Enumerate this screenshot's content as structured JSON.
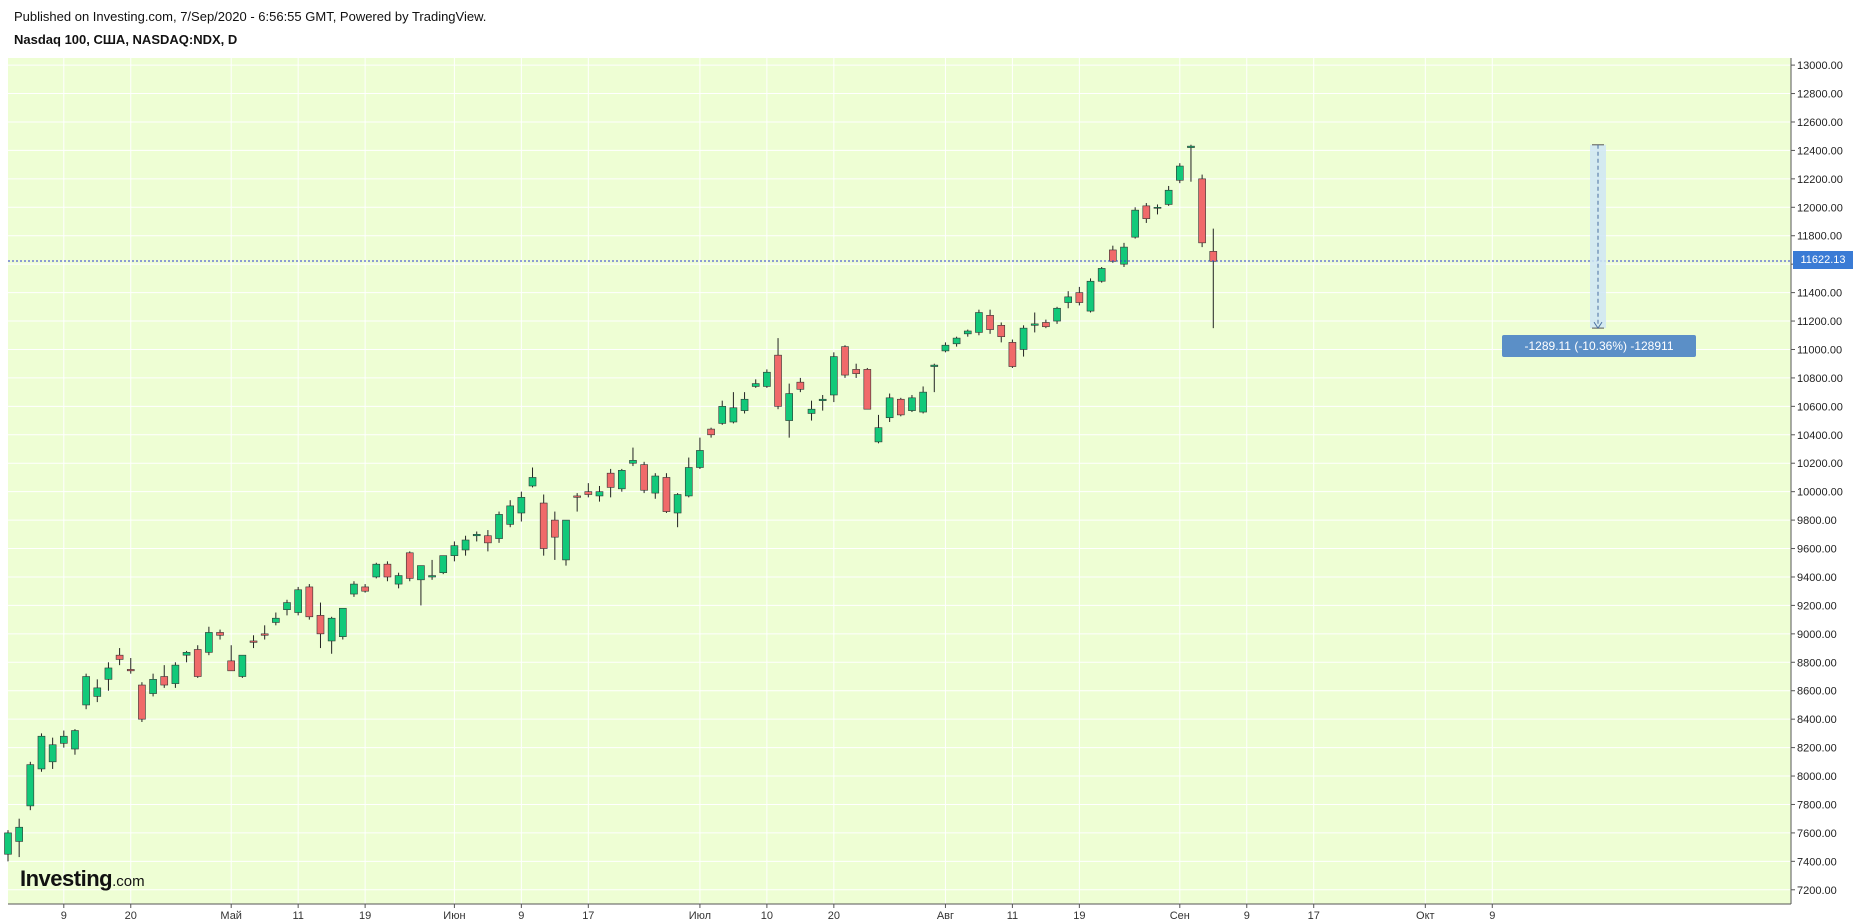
{
  "header": {
    "published": "Published on Investing.com, 7/Sep/2020 - 6:56:55 GMT, Powered by TradingView.",
    "symbol": "Nasdaq 100, США, NASDAQ:NDX, D"
  },
  "logo": {
    "main": "Investing",
    "suffix": ".com"
  },
  "last_price_label": "11622.13",
  "measure_label": "-1289.11 (-10.36%) -128911",
  "colors": {
    "plot_bg": "#eefed4",
    "up": "#12c97a",
    "down": "#f06a6a",
    "wick": "#222222",
    "last_price_line": "#2b3bd1",
    "measure": "#5b8fc7"
  },
  "chart_data": {
    "type": "candlestick",
    "title": "Nasdaq 100, США, NASDAQ:NDX, D",
    "ylim": [
      7100,
      13050
    ],
    "y_axis_side": "right",
    "grid": true,
    "y_ticks": [
      "7200.00",
      "7400.00",
      "7600.00",
      "7800.00",
      "8000.00",
      "8200.00",
      "8400.00",
      "8600.00",
      "8800.00",
      "9000.00",
      "9200.00",
      "9400.00",
      "9600.00",
      "9800.00",
      "10000.00",
      "10200.00",
      "10400.00",
      "10600.00",
      "10800.00",
      "11000.00",
      "11200.00",
      "11400.00",
      "11600.00",
      "11800.00",
      "12000.00",
      "12200.00",
      "12400.00",
      "12600.00",
      "12800.00",
      "13000.00"
    ],
    "x_ticks": [
      {
        "label": "9",
        "i": 5
      },
      {
        "label": "20",
        "i": 11
      },
      {
        "label": "Май",
        "i": 20
      },
      {
        "label": "11",
        "i": 26
      },
      {
        "label": "19",
        "i": 32
      },
      {
        "label": "Июн",
        "i": 40
      },
      {
        "label": "9",
        "i": 46
      },
      {
        "label": "17",
        "i": 52
      },
      {
        "label": "Июл",
        "i": 62
      },
      {
        "label": "10",
        "i": 68
      },
      {
        "label": "20",
        "i": 74
      },
      {
        "label": "Авг",
        "i": 84
      },
      {
        "label": "11",
        "i": 90
      },
      {
        "label": "19",
        "i": 96
      },
      {
        "label": "Сен",
        "i": 105
      },
      {
        "label": "9",
        "i": 111
      },
      {
        "label": "17",
        "i": 117
      },
      {
        "label": "Окт",
        "i": 127
      },
      {
        "label": "9",
        "i": 133
      }
    ],
    "last_price": 11622.13,
    "measure": {
      "from": 12439.5,
      "to": 11150.4,
      "change": -1289.11,
      "percent": -10.36,
      "label": "-1289.11 (-10.36%) -128911"
    },
    "candles": [
      [
        7450,
        7620,
        7400,
        7600
      ],
      [
        7540,
        7700,
        7430,
        7640
      ],
      [
        7790,
        8100,
        7760,
        8080
      ],
      [
        8050,
        8300,
        8030,
        8280
      ],
      [
        8100,
        8270,
        8050,
        8220
      ],
      [
        8230,
        8320,
        8200,
        8280
      ],
      [
        8190,
        8330,
        8150,
        8320
      ],
      [
        8500,
        8720,
        8470,
        8700
      ],
      [
        8560,
        8680,
        8520,
        8620
      ],
      [
        8680,
        8800,
        8600,
        8760
      ],
      [
        8850,
        8900,
        8780,
        8820
      ],
      [
        8750,
        8830,
        8720,
        8740
      ],
      [
        8640,
        8660,
        8380,
        8400
      ],
      [
        8580,
        8720,
        8560,
        8680
      ],
      [
        8700,
        8780,
        8620,
        8640
      ],
      [
        8650,
        8800,
        8620,
        8780
      ],
      [
        8850,
        8880,
        8800,
        8870
      ],
      [
        8890,
        8920,
        8690,
        8700
      ],
      [
        8870,
        9050,
        8850,
        9010
      ],
      [
        9010,
        9030,
        8960,
        8990
      ],
      [
        8810,
        8920,
        8750,
        8740
      ],
      [
        8700,
        8850,
        8690,
        8850
      ],
      [
        8950,
        8990,
        8900,
        8940
      ],
      [
        9000,
        9060,
        8960,
        8990
      ],
      [
        9080,
        9150,
        9060,
        9110
      ],
      [
        9170,
        9240,
        9130,
        9220
      ],
      [
        9150,
        9330,
        9130,
        9310
      ],
      [
        9330,
        9350,
        9100,
        9120
      ],
      [
        9130,
        9220,
        8900,
        9000
      ],
      [
        8950,
        9120,
        8860,
        9110
      ],
      [
        8980,
        9180,
        8960,
        9180
      ],
      [
        9280,
        9370,
        9260,
        9350
      ],
      [
        9330,
        9350,
        9290,
        9300
      ],
      [
        9400,
        9500,
        9390,
        9490
      ],
      [
        9490,
        9510,
        9370,
        9400
      ],
      [
        9350,
        9430,
        9320,
        9410
      ],
      [
        9570,
        9580,
        9370,
        9390
      ],
      [
        9380,
        9480,
        9200,
        9480
      ],
      [
        9400,
        9520,
        9380,
        9410
      ],
      [
        9430,
        9550,
        9420,
        9550
      ],
      [
        9550,
        9650,
        9510,
        9620
      ],
      [
        9590,
        9690,
        9550,
        9660
      ],
      [
        9690,
        9720,
        9650,
        9700
      ],
      [
        9690,
        9730,
        9580,
        9640
      ],
      [
        9670,
        9860,
        9640,
        9840
      ],
      [
        9770,
        9940,
        9750,
        9900
      ],
      [
        9850,
        10000,
        9790,
        9960
      ],
      [
        10040,
        10170,
        10030,
        10100
      ],
      [
        9920,
        9980,
        9550,
        9600
      ],
      [
        9800,
        9860,
        9520,
        9680
      ],
      [
        9520,
        9800,
        9480,
        9800
      ],
      [
        9970,
        9990,
        9860,
        9960
      ],
      [
        10000,
        10060,
        9960,
        9980
      ],
      [
        9970,
        10040,
        9930,
        10000
      ],
      [
        10130,
        10160,
        9960,
        10030
      ],
      [
        10020,
        10160,
        10000,
        10150
      ],
      [
        10200,
        10310,
        10180,
        10220
      ],
      [
        10190,
        10210,
        9990,
        10010
      ],
      [
        9990,
        10130,
        9950,
        10110
      ],
      [
        10100,
        10130,
        9850,
        9860
      ],
      [
        9850,
        9990,
        9750,
        9980
      ],
      [
        9970,
        10240,
        9960,
        10170
      ],
      [
        10170,
        10380,
        10160,
        10290
      ],
      [
        10440,
        10450,
        10380,
        10400
      ],
      [
        10480,
        10640,
        10470,
        10600
      ],
      [
        10490,
        10700,
        10480,
        10590
      ],
      [
        10570,
        10700,
        10550,
        10650
      ],
      [
        10740,
        10790,
        10730,
        10760
      ],
      [
        10740,
        10860,
        10730,
        10840
      ],
      [
        10960,
        11080,
        10580,
        10600
      ],
      [
        10500,
        10760,
        10380,
        10690
      ],
      [
        10770,
        10800,
        10700,
        10720
      ],
      [
        10550,
        10640,
        10500,
        10580
      ],
      [
        10640,
        10680,
        10570,
        10650
      ],
      [
        10680,
        10980,
        10630,
        10950
      ],
      [
        11020,
        11030,
        10800,
        10820
      ],
      [
        10860,
        10900,
        10800,
        10830
      ],
      [
        10860,
        10870,
        10580,
        10580
      ],
      [
        10350,
        10540,
        10340,
        10450
      ],
      [
        10520,
        10690,
        10490,
        10660
      ],
      [
        10650,
        10660,
        10530,
        10540
      ],
      [
        10570,
        10680,
        10560,
        10660
      ],
      [
        10560,
        10740,
        10550,
        10700
      ],
      [
        10880,
        10900,
        10700,
        10890
      ],
      [
        10990,
        11050,
        10980,
        11030
      ],
      [
        11040,
        11090,
        11020,
        11080
      ],
      [
        11110,
        11140,
        11090,
        11130
      ],
      [
        11120,
        11280,
        11100,
        11260
      ],
      [
        11240,
        11280,
        11110,
        11140
      ],
      [
        11170,
        11190,
        11050,
        11090
      ],
      [
        11050,
        11070,
        10870,
        10880
      ],
      [
        11000,
        11170,
        10950,
        11150
      ],
      [
        11170,
        11260,
        11120,
        11180
      ],
      [
        11190,
        11210,
        11150,
        11160
      ],
      [
        11200,
        11300,
        11180,
        11290
      ],
      [
        11330,
        11410,
        11290,
        11370
      ],
      [
        11400,
        11440,
        11310,
        11330
      ],
      [
        11270,
        11500,
        11260,
        11480
      ],
      [
        11480,
        11580,
        11470,
        11570
      ],
      [
        11700,
        11730,
        11610,
        11620
      ],
      [
        11600,
        11750,
        11580,
        11720
      ],
      [
        11790,
        12000,
        11780,
        11980
      ],
      [
        12010,
        12030,
        11890,
        11920
      ],
      [
        12000,
        12020,
        11950,
        12000
      ],
      [
        12020,
        12150,
        12010,
        12120
      ],
      [
        12190,
        12310,
        12170,
        12290
      ],
      [
        12420,
        12440,
        12180,
        12430
      ],
      [
        12200,
        12230,
        11720,
        11750
      ],
      [
        11690,
        11850,
        11150,
        11620
      ]
    ]
  }
}
